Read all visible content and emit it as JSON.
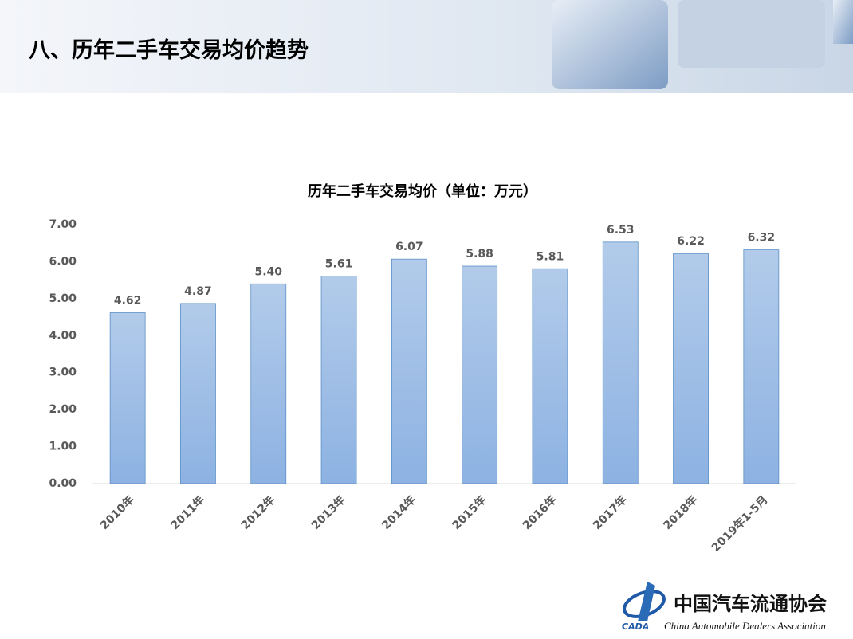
{
  "header": {
    "title": "八、历年二手车交易均价趋势"
  },
  "chart_data": {
    "type": "bar",
    "title": "历年二手车交易均价（单位：万元）",
    "categories": [
      "2010年",
      "2011年",
      "2012年",
      "2013年",
      "2014年",
      "2015年",
      "2016年",
      "2017年",
      "2018年",
      "2019年1-5月"
    ],
    "values": [
      4.62,
      4.87,
      5.4,
      5.61,
      6.07,
      5.88,
      5.81,
      6.53,
      6.22,
      6.32
    ],
    "value_labels": [
      "4.62",
      "4.87",
      "5.40",
      "5.61",
      "6.07",
      "5.88",
      "5.81",
      "6.53",
      "6.22",
      "6.32"
    ],
    "color": "#9dbde6",
    "ylim": [
      0,
      7
    ],
    "yticks": [
      {
        "value": 0,
        "label": "0.00"
      },
      {
        "value": 1,
        "label": "1.00"
      },
      {
        "value": 2,
        "label": "2.00"
      },
      {
        "value": 3,
        "label": "3.00"
      },
      {
        "value": 4,
        "label": "4.00"
      },
      {
        "value": 5,
        "label": "5.00"
      },
      {
        "value": 6,
        "label": "6.00"
      },
      {
        "value": 7,
        "label": "7.00"
      }
    ],
    "grid": false
  },
  "logo": {
    "mark": "CADA",
    "cn": "中国汽车流通协会",
    "en": "China Automobile Dealers Association"
  }
}
